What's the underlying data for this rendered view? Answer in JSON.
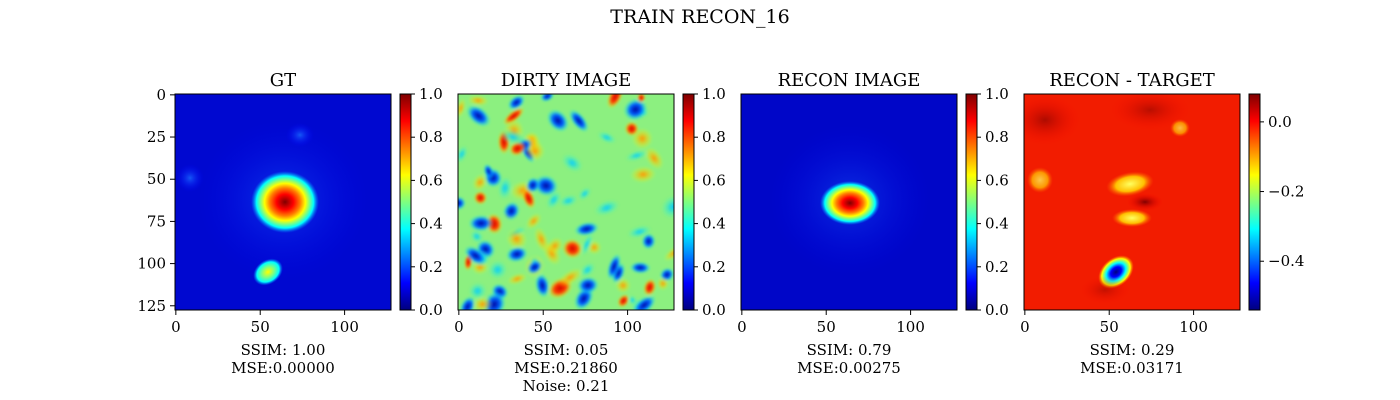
{
  "figure_title": "TRAIN RECON_16",
  "colormap": "jet",
  "colormap_stops": [
    "#00007f",
    "#0000ff",
    "#007fff",
    "#00ffff",
    "#7fff7f",
    "#ffff00",
    "#ff7f00",
    "#ff0000",
    "#7f0000"
  ],
  "chart_data": [
    {
      "type": "heatmap",
      "title": "GT",
      "image_extent": [
        0,
        128
      ],
      "xticks": [
        0,
        50,
        100
      ],
      "yticks": [
        0,
        25,
        50,
        75,
        100,
        125
      ],
      "show_yticks": true,
      "colorbar": {
        "min": 0.0,
        "max": 1.0,
        "ticks": [
          0.0,
          0.2,
          0.4,
          0.6,
          0.8,
          1.0
        ],
        "tick_labels": [
          "0.0",
          "0.2",
          "0.4",
          "0.6",
          "0.8",
          "1.0"
        ]
      },
      "caption": [
        "SSIM: 1.00",
        "MSE:0.00000"
      ]
    },
    {
      "type": "heatmap",
      "title": "DIRTY IMAGE",
      "image_extent": [
        0,
        128
      ],
      "xticks": [
        0,
        50,
        100
      ],
      "yticks": [],
      "show_yticks": false,
      "colorbar": {
        "min": 0.0,
        "max": 1.0,
        "ticks": [
          0.0,
          0.2,
          0.4,
          0.6,
          0.8,
          1.0
        ],
        "tick_labels": [
          "0.0",
          "0.2",
          "0.4",
          "0.6",
          "0.8",
          "1.0"
        ]
      },
      "caption": [
        "SSIM: 0.05",
        "MSE:0.21860",
        "Noise: 0.21"
      ]
    },
    {
      "type": "heatmap",
      "title": "RECON IMAGE",
      "image_extent": [
        0,
        128
      ],
      "xticks": [
        0,
        50,
        100
      ],
      "yticks": [],
      "show_yticks": false,
      "colorbar": {
        "min": 0.0,
        "max": 1.0,
        "ticks": [
          0.0,
          0.2,
          0.4,
          0.6,
          0.8,
          1.0
        ],
        "tick_labels": [
          "0.0",
          "0.2",
          "0.4",
          "0.6",
          "0.8",
          "1.0"
        ]
      },
      "caption": [
        "SSIM: 0.79",
        "MSE:0.00275"
      ]
    },
    {
      "type": "heatmap",
      "title": "RECON - TARGET",
      "image_extent": [
        0,
        128
      ],
      "xticks": [
        0,
        50,
        100
      ],
      "yticks": [],
      "show_yticks": false,
      "colorbar": {
        "min": -0.54,
        "max": 0.08,
        "ticks": [
          0.0,
          -0.2,
          -0.4
        ],
        "tick_labels": [
          "0.0",
          "−0.2",
          "−0.4"
        ]
      },
      "caption": [
        "SSIM: 0.29",
        "MSE:0.03171"
      ]
    }
  ]
}
